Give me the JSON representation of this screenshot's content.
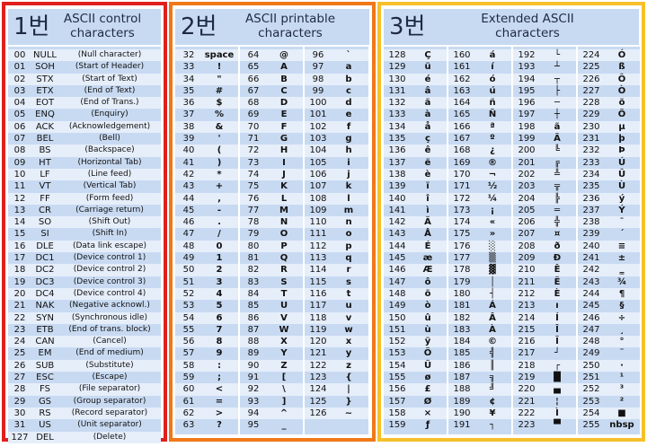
{
  "panels": {
    "control": {
      "number": "1번",
      "title1": "ASCII control",
      "title2": "characters"
    },
    "printable": {
      "number": "2번",
      "title1": "ASCII printable",
      "title2": "characters"
    },
    "extended": {
      "number": "3번",
      "title1": "Extended ASCII",
      "title2": "characters"
    }
  },
  "control_rows": [
    [
      "00",
      "NULL",
      "(Null character)"
    ],
    [
      "01",
      "SOH",
      "(Start of Header)"
    ],
    [
      "02",
      "STX",
      "(Start of Text)"
    ],
    [
      "03",
      "ETX",
      "(End of Text)"
    ],
    [
      "04",
      "EOT",
      "(End of Trans.)"
    ],
    [
      "05",
      "ENQ",
      "(Enquiry)"
    ],
    [
      "06",
      "ACK",
      "(Acknowledgement)"
    ],
    [
      "07",
      "BEL",
      "(Bell)"
    ],
    [
      "08",
      "BS",
      "(Backspace)"
    ],
    [
      "09",
      "HT",
      "(Horizontal Tab)"
    ],
    [
      "10",
      "LF",
      "(Line feed)"
    ],
    [
      "11",
      "VT",
      "(Vertical Tab)"
    ],
    [
      "12",
      "FF",
      "(Form feed)"
    ],
    [
      "13",
      "CR",
      "(Carriage return)"
    ],
    [
      "14",
      "SO",
      "(Shift Out)"
    ],
    [
      "15",
      "SI",
      "(Shift In)"
    ],
    [
      "16",
      "DLE",
      "(Data link escape)"
    ],
    [
      "17",
      "DC1",
      "(Device control 1)"
    ],
    [
      "18",
      "DC2",
      "(Device control 2)"
    ],
    [
      "19",
      "DC3",
      "(Device control 3)"
    ],
    [
      "20",
      "DC4",
      "(Device control 4)"
    ],
    [
      "21",
      "NAK",
      "(Negative acknowl.)"
    ],
    [
      "22",
      "SYN",
      "(Synchronous idle)"
    ],
    [
      "23",
      "ETB",
      "(End of trans. block)"
    ],
    [
      "24",
      "CAN",
      "(Cancel)"
    ],
    [
      "25",
      "EM",
      "(End of medium)"
    ],
    [
      "26",
      "SUB",
      "(Substitute)"
    ],
    [
      "27",
      "ESC",
      "(Escape)"
    ],
    [
      "28",
      "FS",
      "(File separator)"
    ],
    [
      "29",
      "GS",
      "(Group separator)"
    ],
    [
      "30",
      "RS",
      "(Record separator)"
    ],
    [
      "31",
      "US",
      "(Unit separator)"
    ],
    [
      "127",
      "DEL",
      "(Delete)"
    ]
  ],
  "printable_cols": [
    [
      [
        "32",
        "space"
      ],
      [
        "33",
        "!"
      ],
      [
        "34",
        "\""
      ],
      [
        "35",
        "#"
      ],
      [
        "36",
        "$"
      ],
      [
        "37",
        "%"
      ],
      [
        "38",
        "&"
      ],
      [
        "39",
        "'"
      ],
      [
        "40",
        "("
      ],
      [
        "41",
        ")"
      ],
      [
        "42",
        "*"
      ],
      [
        "43",
        "+"
      ],
      [
        "44",
        ","
      ],
      [
        "45",
        "-"
      ],
      [
        "46",
        "."
      ],
      [
        "47",
        "/"
      ],
      [
        "48",
        "0"
      ],
      [
        "49",
        "1"
      ],
      [
        "50",
        "2"
      ],
      [
        "51",
        "3"
      ],
      [
        "52",
        "4"
      ],
      [
        "53",
        "5"
      ],
      [
        "54",
        "6"
      ],
      [
        "55",
        "7"
      ],
      [
        "56",
        "8"
      ],
      [
        "57",
        "9"
      ],
      [
        "58",
        ":"
      ],
      [
        "59",
        ";"
      ],
      [
        "60",
        "<"
      ],
      [
        "61",
        "="
      ],
      [
        "62",
        ">"
      ],
      [
        "63",
        "?"
      ]
    ],
    [
      [
        "64",
        "@"
      ],
      [
        "65",
        "A"
      ],
      [
        "66",
        "B"
      ],
      [
        "67",
        "C"
      ],
      [
        "68",
        "D"
      ],
      [
        "69",
        "E"
      ],
      [
        "70",
        "F"
      ],
      [
        "71",
        "G"
      ],
      [
        "72",
        "H"
      ],
      [
        "73",
        "I"
      ],
      [
        "74",
        "J"
      ],
      [
        "75",
        "K"
      ],
      [
        "76",
        "L"
      ],
      [
        "77",
        "M"
      ],
      [
        "78",
        "N"
      ],
      [
        "79",
        "O"
      ],
      [
        "80",
        "P"
      ],
      [
        "81",
        "Q"
      ],
      [
        "82",
        "R"
      ],
      [
        "83",
        "S"
      ],
      [
        "84",
        "T"
      ],
      [
        "85",
        "U"
      ],
      [
        "86",
        "V"
      ],
      [
        "87",
        "W"
      ],
      [
        "88",
        "X"
      ],
      [
        "89",
        "Y"
      ],
      [
        "90",
        "Z"
      ],
      [
        "91",
        "["
      ],
      [
        "92",
        "\\"
      ],
      [
        "93",
        "]"
      ],
      [
        "94",
        "^"
      ],
      [
        "95",
        "_"
      ]
    ],
    [
      [
        "96",
        "`"
      ],
      [
        "97",
        "a"
      ],
      [
        "98",
        "b"
      ],
      [
        "99",
        "c"
      ],
      [
        "100",
        "d"
      ],
      [
        "101",
        "e"
      ],
      [
        "102",
        "f"
      ],
      [
        "103",
        "g"
      ],
      [
        "104",
        "h"
      ],
      [
        "105",
        "i"
      ],
      [
        "106",
        "j"
      ],
      [
        "107",
        "k"
      ],
      [
        "108",
        "l"
      ],
      [
        "109",
        "m"
      ],
      [
        "110",
        "n"
      ],
      [
        "111",
        "o"
      ],
      [
        "112",
        "p"
      ],
      [
        "113",
        "q"
      ],
      [
        "114",
        "r"
      ],
      [
        "115",
        "s"
      ],
      [
        "116",
        "t"
      ],
      [
        "117",
        "u"
      ],
      [
        "118",
        "v"
      ],
      [
        "119",
        "w"
      ],
      [
        "120",
        "x"
      ],
      [
        "121",
        "y"
      ],
      [
        "122",
        "z"
      ],
      [
        "123",
        "{"
      ],
      [
        "124",
        "|"
      ],
      [
        "125",
        "}"
      ],
      [
        "126",
        "~"
      ]
    ]
  ],
  "extended_cols": [
    [
      [
        "128",
        "Ç"
      ],
      [
        "129",
        "ü"
      ],
      [
        "130",
        "é"
      ],
      [
        "131",
        "â"
      ],
      [
        "132",
        "ä"
      ],
      [
        "133",
        "à"
      ],
      [
        "134",
        "å"
      ],
      [
        "135",
        "ç"
      ],
      [
        "136",
        "ê"
      ],
      [
        "137",
        "ë"
      ],
      [
        "138",
        "è"
      ],
      [
        "139",
        "ï"
      ],
      [
        "140",
        "î"
      ],
      [
        "141",
        "ì"
      ],
      [
        "142",
        "Ä"
      ],
      [
        "143",
        "Å"
      ],
      [
        "144",
        "É"
      ],
      [
        "145",
        "æ"
      ],
      [
        "146",
        "Æ"
      ],
      [
        "147",
        "ô"
      ],
      [
        "148",
        "ö"
      ],
      [
        "149",
        "ò"
      ],
      [
        "150",
        "û"
      ],
      [
        "151",
        "ù"
      ],
      [
        "152",
        "ÿ"
      ],
      [
        "153",
        "Ö"
      ],
      [
        "154",
        "Ü"
      ],
      [
        "155",
        "ø"
      ],
      [
        "156",
        "£"
      ],
      [
        "157",
        "Ø"
      ],
      [
        "158",
        "×"
      ],
      [
        "159",
        "ƒ"
      ]
    ],
    [
      [
        "160",
        "á"
      ],
      [
        "161",
        "í"
      ],
      [
        "162",
        "ó"
      ],
      [
        "163",
        "ú"
      ],
      [
        "164",
        "ñ"
      ],
      [
        "165",
        "Ñ"
      ],
      [
        "166",
        "ª"
      ],
      [
        "167",
        "º"
      ],
      [
        "168",
        "¿"
      ],
      [
        "169",
        "®"
      ],
      [
        "170",
        "¬"
      ],
      [
        "171",
        "½"
      ],
      [
        "172",
        "¼"
      ],
      [
        "173",
        "¡"
      ],
      [
        "174",
        "«"
      ],
      [
        "175",
        "»"
      ],
      [
        "176",
        "░"
      ],
      [
        "177",
        "▒"
      ],
      [
        "178",
        "▓"
      ],
      [
        "179",
        "│"
      ],
      [
        "180",
        "┤"
      ],
      [
        "181",
        "Á"
      ],
      [
        "182",
        "Â"
      ],
      [
        "183",
        "À"
      ],
      [
        "184",
        "©"
      ],
      [
        "185",
        "╣"
      ],
      [
        "186",
        "║"
      ],
      [
        "187",
        "╗"
      ],
      [
        "188",
        "╝"
      ],
      [
        "189",
        "¢"
      ],
      [
        "190",
        "¥"
      ],
      [
        "191",
        "┐"
      ]
    ],
    [
      [
        "192",
        "└"
      ],
      [
        "193",
        "┴"
      ],
      [
        "194",
        "┬"
      ],
      [
        "195",
        "├"
      ],
      [
        "196",
        "─"
      ],
      [
        "197",
        "┼"
      ],
      [
        "198",
        "ã"
      ],
      [
        "199",
        "Ã"
      ],
      [
        "200",
        "╚"
      ],
      [
        "201",
        "╔"
      ],
      [
        "202",
        "╩"
      ],
      [
        "203",
        "╦"
      ],
      [
        "204",
        "╠"
      ],
      [
        "205",
        "═"
      ],
      [
        "206",
        "╬"
      ],
      [
        "207",
        "¤"
      ],
      [
        "208",
        "ð"
      ],
      [
        "209",
        "Ð"
      ],
      [
        "210",
        "Ê"
      ],
      [
        "211",
        "Ë"
      ],
      [
        "212",
        "È"
      ],
      [
        "213",
        "ı"
      ],
      [
        "214",
        "Í"
      ],
      [
        "215",
        "Î"
      ],
      [
        "216",
        "Ï"
      ],
      [
        "217",
        "┘"
      ],
      [
        "218",
        "┌"
      ],
      [
        "219",
        "█"
      ],
      [
        "220",
        "▄"
      ],
      [
        "221",
        "¦"
      ],
      [
        "222",
        "Ì"
      ],
      [
        "223",
        "▀"
      ]
    ],
    [
      [
        "224",
        "Ó"
      ],
      [
        "225",
        "ß"
      ],
      [
        "226",
        "Ô"
      ],
      [
        "227",
        "Ò"
      ],
      [
        "228",
        "õ"
      ],
      [
        "229",
        "Õ"
      ],
      [
        "230",
        "µ"
      ],
      [
        "231",
        "þ"
      ],
      [
        "232",
        "Þ"
      ],
      [
        "233",
        "Ú"
      ],
      [
        "234",
        "Û"
      ],
      [
        "235",
        "Ù"
      ],
      [
        "236",
        "ý"
      ],
      [
        "237",
        "Ý"
      ],
      [
        "238",
        "¯"
      ],
      [
        "239",
        "´"
      ],
      [
        "240",
        "≡"
      ],
      [
        "241",
        "±"
      ],
      [
        "242",
        "‗"
      ],
      [
        "243",
        "¾"
      ],
      [
        "244",
        "¶"
      ],
      [
        "245",
        "§"
      ],
      [
        "246",
        "÷"
      ],
      [
        "247",
        "¸"
      ],
      [
        "248",
        "°"
      ],
      [
        "249",
        "¨"
      ],
      [
        "250",
        "·"
      ],
      [
        "251",
        "¹"
      ],
      [
        "252",
        "³"
      ],
      [
        "253",
        "²"
      ],
      [
        "254",
        "■"
      ],
      [
        "255",
        "nbsp"
      ]
    ]
  ]
}
